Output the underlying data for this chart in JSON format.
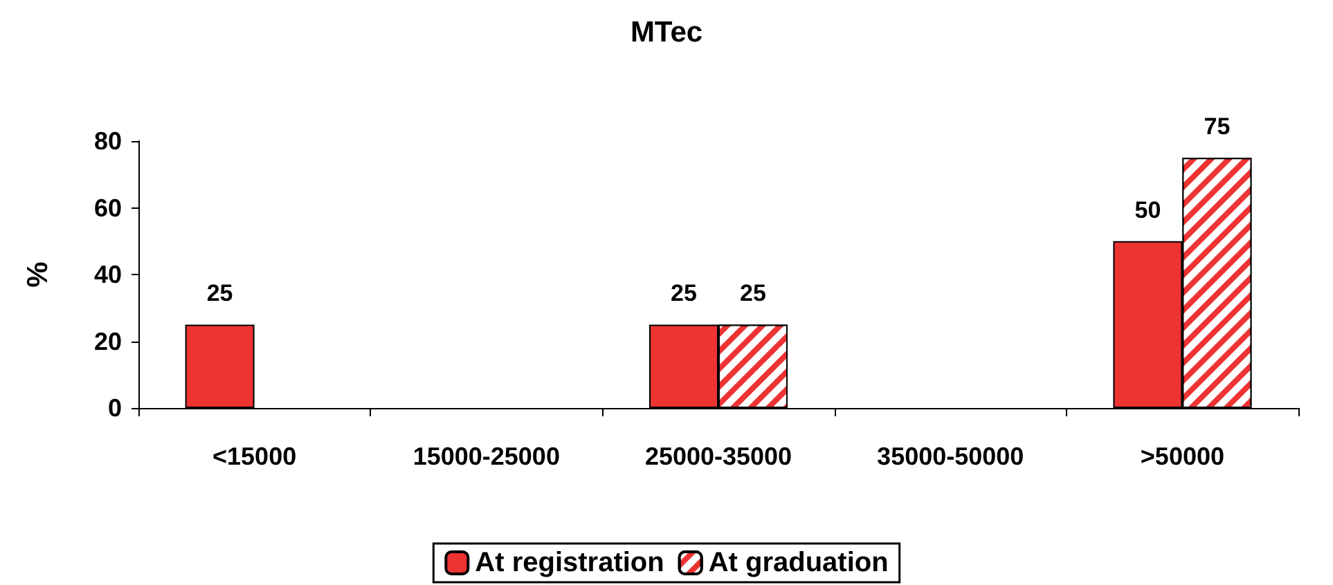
{
  "chart_data": {
    "type": "bar",
    "title": "MTec",
    "ylabel": "%",
    "categories": [
      "<15000",
      "15000-25000",
      "25000-35000",
      "35000-50000",
      ">50000"
    ],
    "series": [
      {
        "name": "At registration",
        "color": "#ee3333",
        "values": [
          25,
          null,
          25,
          null,
          50
        ]
      },
      {
        "name": "At graduation",
        "color": "#ee3333",
        "values": [
          null,
          null,
          25,
          null,
          75
        ]
      }
    ],
    "ylim": [
      0,
      80
    ],
    "yticks": [
      0,
      20,
      40,
      60,
      80
    ],
    "grid": false,
    "legend": "bottom",
    "data_labels": true
  }
}
